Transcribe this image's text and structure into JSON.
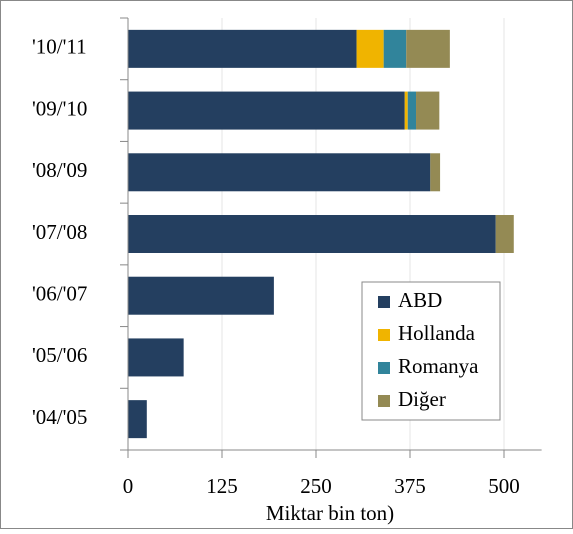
{
  "chart_data": {
    "type": "stacked_barh",
    "x_label": "Miktar bin ton)",
    "categories": [
      "'10/'11",
      "'09/'10",
      "'08/'09",
      "'07/'08",
      "'06/'07",
      "'05/'06",
      "'04/'05"
    ],
    "series": [
      {
        "name": "ABD",
        "color": "#243f60",
        "values": [
          304,
          368,
          402,
          489,
          194,
          74,
          25
        ]
      },
      {
        "name": "Hollanda",
        "color": "#f0b400",
        "values": [
          36,
          4,
          null,
          null,
          null,
          null,
          null
        ]
      },
      {
        "name": "Romanya",
        "color": "#31849b",
        "values": [
          30,
          11,
          null,
          null,
          null,
          null,
          null
        ]
      },
      {
        "name": "Diğer",
        "color": "#948a54",
        "values": [
          58,
          31,
          13,
          24,
          null,
          null,
          null
        ]
      }
    ],
    "xlim": [
      0,
      550
    ],
    "xticks": [
      0,
      125,
      250,
      375,
      500
    ],
    "grid": true,
    "legend": "lower right"
  }
}
